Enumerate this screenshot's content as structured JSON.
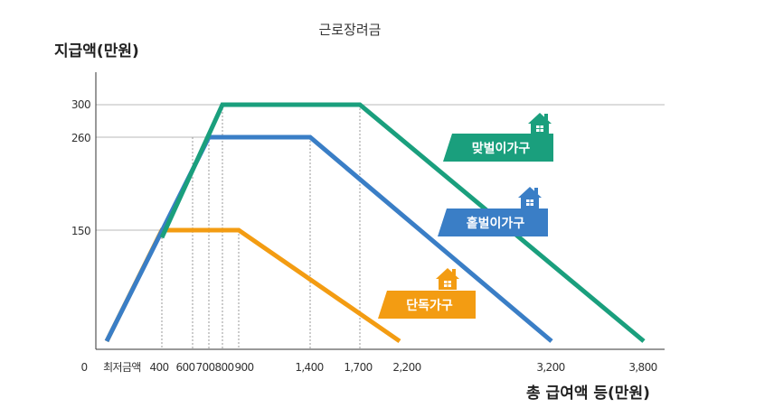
{
  "chart_data": {
    "type": "line",
    "title": "근로장려금",
    "ylabel": "지급액(만원)",
    "xlabel": "총 급여액 등(만원)",
    "x_tick_labels": [
      "0",
      "최저금액",
      "400",
      "600",
      "700",
      "800",
      "900",
      "1,400",
      "1,700",
      "2,200",
      "3,200",
      "3,800"
    ],
    "y_tick_labels": [
      "150",
      "260",
      "300"
    ],
    "series": [
      {
        "name": "맞벌이가구",
        "color": "#1a9f7d",
        "points": [
          [
            800,
            300
          ],
          [
            1700,
            300
          ],
          [
            3800,
            0
          ]
        ]
      },
      {
        "name": "홑벌이가구",
        "color": "#3a7ec6",
        "points": [
          [
            0,
            0
          ],
          [
            700,
            260
          ],
          [
            1400,
            260
          ],
          [
            3200,
            0
          ]
        ]
      },
      {
        "name": "단독가구",
        "color": "#f39c12",
        "points": [
          [
            0,
            0
          ],
          [
            400,
            150
          ],
          [
            900,
            150
          ],
          [
            2200,
            0
          ]
        ]
      }
    ]
  }
}
